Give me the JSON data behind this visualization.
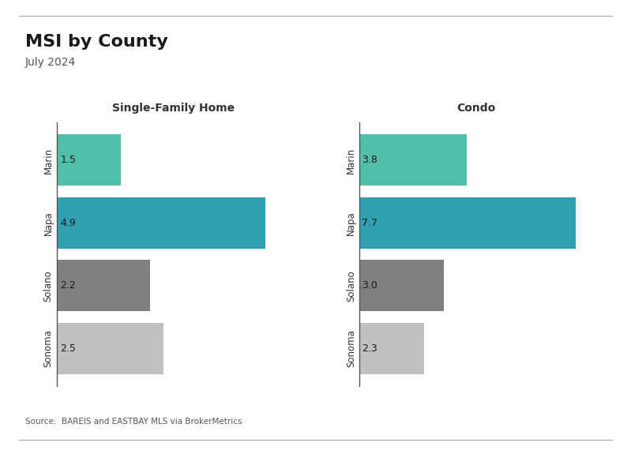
{
  "title": "MSI by County",
  "subtitle": "July 2024",
  "source": "Source:  BAREIS and EASTBAY MLS via BrokerMetrics",
  "categories": [
    "Marin",
    "Napa",
    "Solano",
    "Sonoma"
  ],
  "sfh_values": [
    1.5,
    4.9,
    2.2,
    2.5
  ],
  "condo_values": [
    3.8,
    7.7,
    3.0,
    2.3
  ],
  "sfh_title": "Single-Family Home",
  "condo_title": "Condo",
  "colors": {
    "Marin": "#52bfaa",
    "Napa": "#2fa0b0",
    "Solano": "#808080",
    "Sonoma": "#c0c0c0"
  },
  "background_color": "#ffffff",
  "title_fontsize": 16,
  "subtitle_fontsize": 10,
  "label_fontsize": 8.5,
  "bar_label_fontsize": 9,
  "source_fontsize": 7.5
}
